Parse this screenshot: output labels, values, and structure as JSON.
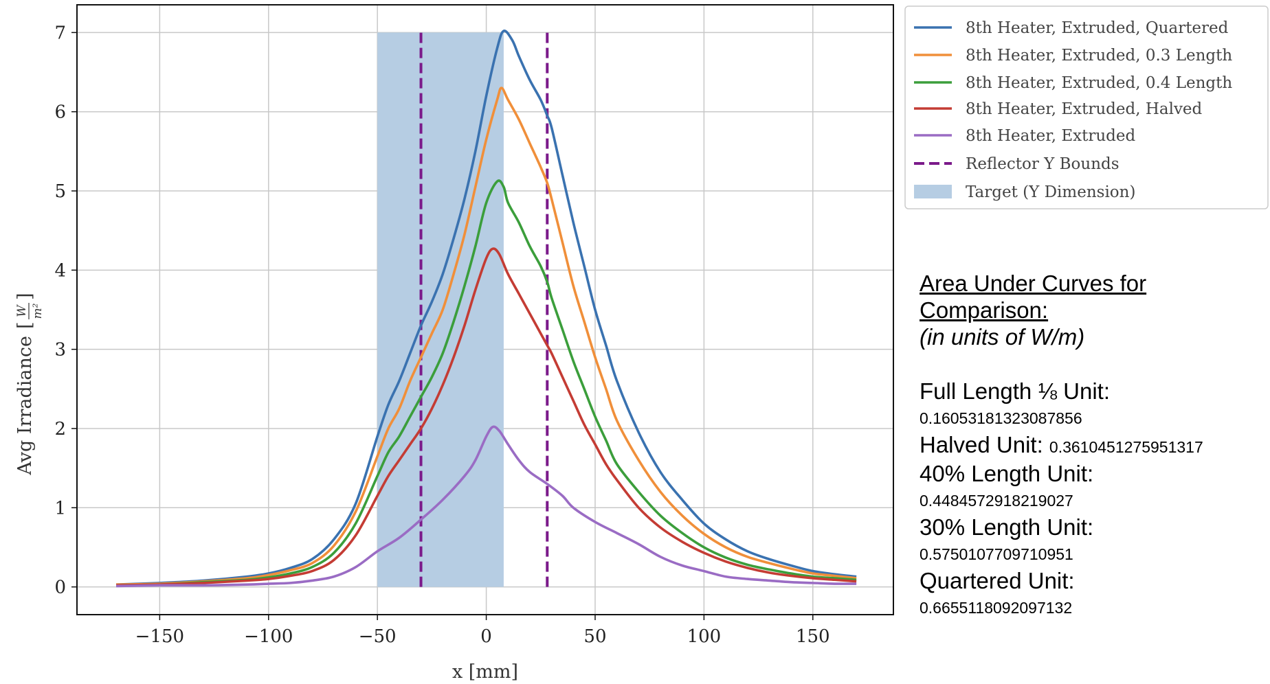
{
  "chart_data": {
    "type": "line",
    "xlabel": "x [mm]",
    "ylabel_text": "Avg Irradiance",
    "ylabel_unit_num": "W",
    "ylabel_unit_den": "m²",
    "xlim": [
      -188,
      187
    ],
    "ylim": [
      -0.35,
      7.35
    ],
    "xticks": [
      -150,
      -100,
      -50,
      0,
      50,
      100,
      150
    ],
    "xtick_labels": [
      "−150",
      "−100",
      "−50",
      "0",
      "50",
      "100",
      "150"
    ],
    "yticks": [
      0,
      1,
      2,
      3,
      4,
      5,
      6,
      7
    ],
    "ytick_labels": [
      "0",
      "1",
      "2",
      "3",
      "4",
      "5",
      "6",
      "7"
    ],
    "grid": true,
    "legend_position": "outside-top-right",
    "target_region": {
      "label": "Target (Y Dimension)",
      "x": [
        -50,
        8
      ],
      "y": [
        0,
        7
      ],
      "color": "#b6cde3"
    },
    "reflector_bounds": {
      "label": "Reflector Y Bounds",
      "x": [
        -30,
        28
      ],
      "y": [
        0,
        7
      ],
      "color": "#7b1a8a"
    },
    "series": [
      {
        "name": "8th Heater, Extruded, Quartered",
        "color": "#3a72b0",
        "points": [
          [
            -170,
            0.03
          ],
          [
            -150,
            0.05
          ],
          [
            -130,
            0.08
          ],
          [
            -110,
            0.13
          ],
          [
            -100,
            0.17
          ],
          [
            -90,
            0.24
          ],
          [
            -80,
            0.35
          ],
          [
            -70,
            0.6
          ],
          [
            -60,
            1.05
          ],
          [
            -50,
            1.9
          ],
          [
            -45,
            2.3
          ],
          [
            -40,
            2.6
          ],
          [
            -35,
            2.95
          ],
          [
            -30,
            3.3
          ],
          [
            -25,
            3.6
          ],
          [
            -20,
            3.95
          ],
          [
            -15,
            4.4
          ],
          [
            -10,
            4.9
          ],
          [
            -5,
            5.5
          ],
          [
            0,
            6.2
          ],
          [
            5,
            6.8
          ],
          [
            8,
            7.02
          ],
          [
            12,
            6.9
          ],
          [
            15,
            6.7
          ],
          [
            20,
            6.4
          ],
          [
            25,
            6.15
          ],
          [
            28,
            5.95
          ],
          [
            30,
            5.8
          ],
          [
            35,
            5.2
          ],
          [
            40,
            4.6
          ],
          [
            45,
            4.05
          ],
          [
            50,
            3.5
          ],
          [
            55,
            3.05
          ],
          [
            60,
            2.6
          ],
          [
            70,
            1.95
          ],
          [
            80,
            1.45
          ],
          [
            90,
            1.1
          ],
          [
            100,
            0.8
          ],
          [
            110,
            0.6
          ],
          [
            120,
            0.45
          ],
          [
            130,
            0.35
          ],
          [
            140,
            0.27
          ],
          [
            150,
            0.2
          ],
          [
            160,
            0.16
          ],
          [
            170,
            0.13
          ]
        ]
      },
      {
        "name": "8th Heater, Extruded, 0.3 Length",
        "color": "#f08f3a",
        "points": [
          [
            -170,
            0.03
          ],
          [
            -150,
            0.04
          ],
          [
            -130,
            0.07
          ],
          [
            -110,
            0.11
          ],
          [
            -100,
            0.15
          ],
          [
            -90,
            0.21
          ],
          [
            -80,
            0.3
          ],
          [
            -70,
            0.52
          ],
          [
            -60,
            0.95
          ],
          [
            -50,
            1.65
          ],
          [
            -45,
            2.0
          ],
          [
            -40,
            2.25
          ],
          [
            -35,
            2.6
          ],
          [
            -30,
            2.9
          ],
          [
            -25,
            3.2
          ],
          [
            -20,
            3.5
          ],
          [
            -15,
            3.95
          ],
          [
            -10,
            4.45
          ],
          [
            -5,
            5.05
          ],
          [
            0,
            5.65
          ],
          [
            5,
            6.15
          ],
          [
            7,
            6.3
          ],
          [
            10,
            6.15
          ],
          [
            15,
            5.9
          ],
          [
            20,
            5.6
          ],
          [
            25,
            5.3
          ],
          [
            28,
            5.1
          ],
          [
            30,
            4.9
          ],
          [
            35,
            4.35
          ],
          [
            40,
            3.8
          ],
          [
            45,
            3.35
          ],
          [
            50,
            2.9
          ],
          [
            55,
            2.5
          ],
          [
            60,
            2.1
          ],
          [
            70,
            1.6
          ],
          [
            80,
            1.2
          ],
          [
            90,
            0.9
          ],
          [
            100,
            0.67
          ],
          [
            110,
            0.5
          ],
          [
            120,
            0.38
          ],
          [
            130,
            0.3
          ],
          [
            140,
            0.23
          ],
          [
            150,
            0.17
          ],
          [
            160,
            0.14
          ],
          [
            170,
            0.11
          ]
        ]
      },
      {
        "name": "8th Heater, Extruded, 0.4 Length",
        "color": "#3b9e3b",
        "points": [
          [
            -170,
            0.02
          ],
          [
            -150,
            0.03
          ],
          [
            -130,
            0.06
          ],
          [
            -110,
            0.09
          ],
          [
            -100,
            0.12
          ],
          [
            -90,
            0.17
          ],
          [
            -80,
            0.25
          ],
          [
            -70,
            0.43
          ],
          [
            -60,
            0.8
          ],
          [
            -50,
            1.4
          ],
          [
            -45,
            1.7
          ],
          [
            -40,
            1.9
          ],
          [
            -35,
            2.15
          ],
          [
            -30,
            2.4
          ],
          [
            -25,
            2.65
          ],
          [
            -20,
            2.95
          ],
          [
            -15,
            3.35
          ],
          [
            -10,
            3.8
          ],
          [
            -5,
            4.3
          ],
          [
            0,
            4.85
          ],
          [
            5,
            5.12
          ],
          [
            8,
            5.05
          ],
          [
            10,
            4.85
          ],
          [
            15,
            4.6
          ],
          [
            20,
            4.3
          ],
          [
            25,
            4.05
          ],
          [
            28,
            3.85
          ],
          [
            30,
            3.65
          ],
          [
            35,
            3.25
          ],
          [
            40,
            2.85
          ],
          [
            45,
            2.5
          ],
          [
            50,
            2.15
          ],
          [
            55,
            1.85
          ],
          [
            60,
            1.55
          ],
          [
            70,
            1.2
          ],
          [
            80,
            0.9
          ],
          [
            90,
            0.68
          ],
          [
            100,
            0.5
          ],
          [
            110,
            0.37
          ],
          [
            120,
            0.28
          ],
          [
            130,
            0.22
          ],
          [
            140,
            0.17
          ],
          [
            150,
            0.13
          ],
          [
            160,
            0.11
          ],
          [
            170,
            0.09
          ]
        ]
      },
      {
        "name": "8th Heater, Extruded, Halved",
        "color": "#c43c34",
        "points": [
          [
            -170,
            0.02
          ],
          [
            -150,
            0.03
          ],
          [
            -130,
            0.05
          ],
          [
            -110,
            0.08
          ],
          [
            -100,
            0.1
          ],
          [
            -90,
            0.14
          ],
          [
            -80,
            0.2
          ],
          [
            -70,
            0.34
          ],
          [
            -60,
            0.65
          ],
          [
            -50,
            1.15
          ],
          [
            -45,
            1.4
          ],
          [
            -40,
            1.6
          ],
          [
            -35,
            1.8
          ],
          [
            -30,
            2.0
          ],
          [
            -25,
            2.25
          ],
          [
            -20,
            2.55
          ],
          [
            -15,
            2.9
          ],
          [
            -10,
            3.3
          ],
          [
            -5,
            3.75
          ],
          [
            0,
            4.15
          ],
          [
            3,
            4.27
          ],
          [
            6,
            4.2
          ],
          [
            10,
            3.95
          ],
          [
            15,
            3.7
          ],
          [
            20,
            3.45
          ],
          [
            25,
            3.2
          ],
          [
            28,
            3.05
          ],
          [
            30,
            2.95
          ],
          [
            35,
            2.65
          ],
          [
            40,
            2.35
          ],
          [
            45,
            2.05
          ],
          [
            50,
            1.8
          ],
          [
            55,
            1.55
          ],
          [
            60,
            1.35
          ],
          [
            70,
            1.0
          ],
          [
            80,
            0.75
          ],
          [
            90,
            0.57
          ],
          [
            100,
            0.43
          ],
          [
            110,
            0.32
          ],
          [
            120,
            0.24
          ],
          [
            130,
            0.18
          ],
          [
            140,
            0.14
          ],
          [
            150,
            0.11
          ],
          [
            160,
            0.09
          ],
          [
            170,
            0.07
          ]
        ]
      },
      {
        "name": "8th Heater, Extruded",
        "color": "#9a6cc4",
        "points": [
          [
            -170,
            0.01
          ],
          [
            -150,
            0.02
          ],
          [
            -130,
            0.02
          ],
          [
            -110,
            0.03
          ],
          [
            -100,
            0.04
          ],
          [
            -90,
            0.05
          ],
          [
            -80,
            0.08
          ],
          [
            -70,
            0.13
          ],
          [
            -60,
            0.25
          ],
          [
            -50,
            0.45
          ],
          [
            -40,
            0.62
          ],
          [
            -30,
            0.85
          ],
          [
            -20,
            1.1
          ],
          [
            -10,
            1.4
          ],
          [
            -5,
            1.6
          ],
          [
            0,
            1.9
          ],
          [
            3,
            2.02
          ],
          [
            6,
            1.97
          ],
          [
            10,
            1.8
          ],
          [
            15,
            1.6
          ],
          [
            20,
            1.45
          ],
          [
            28,
            1.3
          ],
          [
            35,
            1.15
          ],
          [
            40,
            1.0
          ],
          [
            50,
            0.82
          ],
          [
            60,
            0.68
          ],
          [
            70,
            0.54
          ],
          [
            80,
            0.38
          ],
          [
            90,
            0.27
          ],
          [
            100,
            0.2
          ],
          [
            110,
            0.13
          ],
          [
            120,
            0.1
          ],
          [
            130,
            0.08
          ],
          [
            140,
            0.06
          ],
          [
            150,
            0.05
          ],
          [
            160,
            0.04
          ],
          [
            170,
            0.04
          ]
        ]
      }
    ]
  },
  "notes": {
    "heading_line1": "Area Under Curves for",
    "heading_line2": "Comparison:",
    "subheading": "(in units of W/m)",
    "items": [
      {
        "label": "Full Length ⅛ Unit:",
        "value": "0.16053181323087856",
        "inline": false
      },
      {
        "label": "Halved Unit: ",
        "value": "0.3610451275951317",
        "inline": true
      },
      {
        "label": "40% Length Unit:",
        "value": "0.4484572918219027",
        "inline": false
      },
      {
        "label": "30% Length Unit:",
        "value": "0.5750107709710951",
        "inline": false
      },
      {
        "label": "Quartered Unit:",
        "value": "0.6655118092097132",
        "inline": false
      }
    ]
  }
}
